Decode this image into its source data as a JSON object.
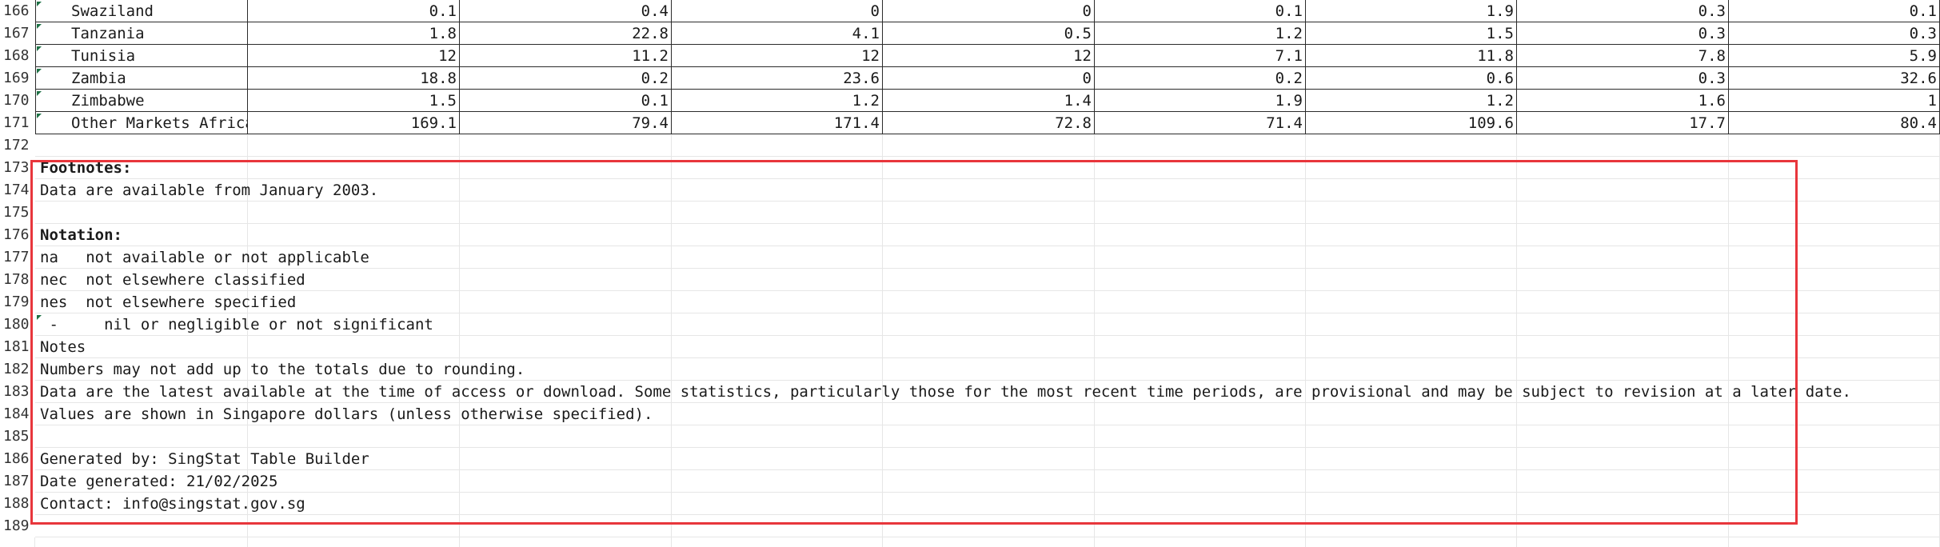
{
  "data_rows": [
    {
      "rownum": "166",
      "name": "Swaziland",
      "values": [
        "0.1",
        "0.4",
        "0",
        "0",
        "0.1",
        "1.9",
        "0.3",
        "0.1"
      ]
    },
    {
      "rownum": "167",
      "name": "Tanzania",
      "values": [
        "1.8",
        "22.8",
        "4.1",
        "0.5",
        "1.2",
        "1.5",
        "0.3",
        "0.3"
      ]
    },
    {
      "rownum": "168",
      "name": "Tunisia",
      "values": [
        "12",
        "11.2",
        "12",
        "12",
        "7.1",
        "11.8",
        "7.8",
        "5.9"
      ]
    },
    {
      "rownum": "169",
      "name": "Zambia",
      "values": [
        "18.8",
        "0.2",
        "23.6",
        "0",
        "0.2",
        "0.6",
        "0.3",
        "32.6"
      ]
    },
    {
      "rownum": "170",
      "name": "Zimbabwe",
      "values": [
        "1.5",
        "0.1",
        "1.2",
        "1.4",
        "1.9",
        "1.2",
        "1.6",
        "1"
      ]
    },
    {
      "rownum": "171",
      "name": "Other Markets Africa",
      "values": [
        "169.1",
        "79.4",
        "171.4",
        "72.8",
        "71.4",
        "109.6",
        "17.7",
        "80.4"
      ]
    }
  ],
  "note_rows": [
    {
      "rownum": "172",
      "text": "",
      "bold": false
    },
    {
      "rownum": "173",
      "text": "Footnotes:",
      "bold": true
    },
    {
      "rownum": "174",
      "text": "Data are available from January 2003.",
      "bold": false
    },
    {
      "rownum": "175",
      "text": "",
      "bold": false
    },
    {
      "rownum": "176",
      "text": "Notation:",
      "bold": true
    },
    {
      "rownum": "177",
      "text": "na   not available or not applicable",
      "bold": false
    },
    {
      "rownum": "178",
      "text": "nec  not elsewhere classified",
      "bold": false
    },
    {
      "rownum": "179",
      "text": "nes  not elsewhere specified",
      "bold": false
    },
    {
      "rownum": "180",
      "text": " -     nil or negligible or not significant",
      "bold": false
    },
    {
      "rownum": "181",
      "text": "Notes",
      "bold": false
    },
    {
      "rownum": "182",
      "text": "Numbers may not add up to the totals due to rounding.",
      "bold": false
    },
    {
      "rownum": "183",
      "text": "Data are the latest available at the time of access or download. Some statistics, particularly those for the most recent time periods, are provisional and may be subject to revision at a later date.",
      "bold": false
    },
    {
      "rownum": "184",
      "text": "Values are shown in Singapore dollars (unless otherwise specified).",
      "bold": false
    },
    {
      "rownum": "185",
      "text": "",
      "bold": false
    },
    {
      "rownum": "186",
      "text": "Generated by: SingStat Table Builder",
      "bold": false
    },
    {
      "rownum": "187",
      "text": "Date generated: 21/02/2025",
      "bold": false
    },
    {
      "rownum": "188",
      "text": "Contact: info@singstat.gov.sg",
      "bold": false
    },
    {
      "rownum": "189",
      "text": "",
      "bold": false
    }
  ],
  "highlight_color": "#e8363c",
  "gridline_color": "#e6e6e6",
  "text_marker_color": "#1e7145"
}
